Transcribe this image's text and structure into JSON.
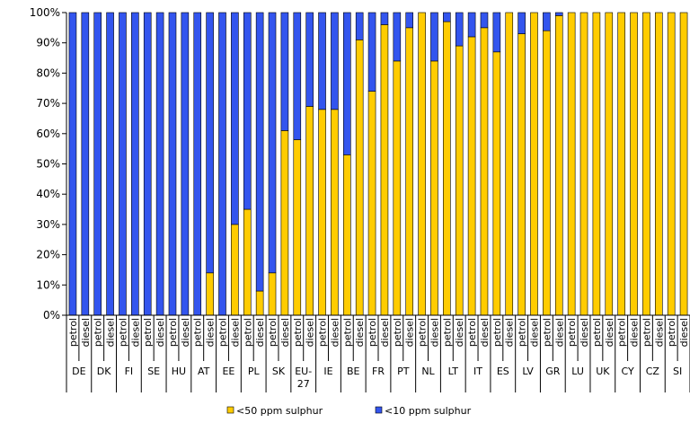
{
  "chart_data": {
    "type": "bar",
    "stacked": true,
    "percent": true,
    "countries": [
      "DE",
      "DK",
      "FI",
      "SE",
      "HU",
      "AT",
      "EE",
      "PL",
      "SK",
      "EU-27",
      "IE",
      "BE",
      "FR",
      "PT",
      "NL",
      "LT",
      "IT",
      "ES",
      "LV",
      "GR",
      "LU",
      "UK",
      "CY",
      "CZ",
      "SI"
    ],
    "fuels": [
      "petrol",
      "diesel"
    ],
    "series": [
      {
        "name": "<50 ppm sulphur",
        "color": "#ffcc00",
        "values": [
          0,
          0,
          0,
          0,
          0,
          0,
          0,
          0,
          0,
          0,
          0,
          14,
          0,
          30,
          35,
          8,
          14,
          61,
          58,
          69,
          68,
          68,
          53,
          91,
          74,
          96,
          84,
          95,
          100,
          84,
          97,
          89,
          92,
          95,
          87,
          100,
          93,
          100,
          94,
          99,
          100,
          100,
          100,
          100,
          100,
          100,
          100,
          100,
          100,
          100
        ]
      },
      {
        "name": "<10 ppm sulphur",
        "color": "#3355ee",
        "values": [
          100,
          100,
          100,
          100,
          100,
          100,
          100,
          100,
          100,
          100,
          100,
          86,
          100,
          70,
          65,
          92,
          86,
          39,
          42,
          31,
          32,
          32,
          47,
          9,
          26,
          4,
          16,
          5,
          0,
          16,
          3,
          11,
          8,
          5,
          13,
          0,
          7,
          0,
          6,
          1,
          0,
          0,
          0,
          0,
          0,
          0,
          0,
          0,
          0,
          0
        ]
      }
    ],
    "yticks": [
      "0%",
      "10%",
      "20%",
      "30%",
      "40%",
      "50%",
      "60%",
      "70%",
      "80%",
      "90%",
      "100%"
    ],
    "ylim": [
      0,
      100
    ],
    "legend_position": "bottom"
  }
}
